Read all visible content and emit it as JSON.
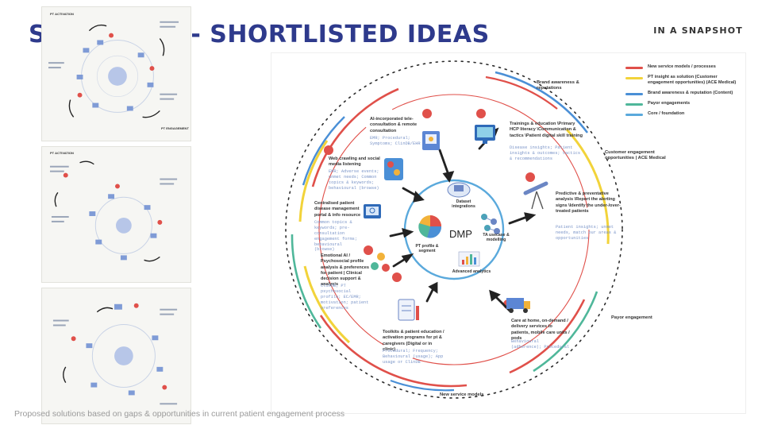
{
  "header": {
    "title": "SYNTHESIS - SHORTLISTED IDEAS",
    "tag": "IN A SNAPSHOT"
  },
  "footer": {
    "note": "Proposed solutions based on gaps & opportunities in current patient engagement process"
  },
  "thumbnails": [
    {
      "labels": [
        "PT ACTIVATION",
        "PT ENGAGEMENT"
      ]
    },
    {
      "labels": [
        "PT ACTIVATION"
      ]
    },
    {
      "labels": []
    }
  ],
  "legend": [
    {
      "label": "New service models / processes",
      "color": "#e0504a"
    },
    {
      "label": "PT insight as solution (Customer engagement opportunities) (ACE Medical)",
      "color": "#f2d33a"
    },
    {
      "label": "Brand awareness & reputation (Content)",
      "color": "#4a8fd6"
    },
    {
      "label": "Payor engagements",
      "color": "#4fb79a"
    },
    {
      "label": "Core / foundation",
      "color": "#5aa9dc"
    }
  ],
  "ring_labels": {
    "brand": "Brand awareness & reputations",
    "customer": "Customer engagement opportunities | ACE Medical",
    "payor": "Payor engagement",
    "service": "New service models"
  },
  "center": {
    "dmp": "DMP",
    "dataset": "Dataset integrations",
    "ta": "TA usecase & modelling",
    "pt_profile": "PT profile & segment",
    "analytics": "Advanced analytics"
  },
  "nodes": {
    "ai_tele": {
      "title": "AI-incorporated tele-consultation & remote consultation",
      "detail": "EMR; Procedural; Symptoms; ClinDB/EHR"
    },
    "trainings": {
      "title": "Trainings & education \\Primary HCP literacy \\Communication & tactics \\Patient digital skill training",
      "detail": "Disease insights; Patient insights & outcomes; tactics & recommendations"
    },
    "web_crawl": {
      "title": "Web crawling and social media listening",
      "detail": "EMR; Adverse events; unmet needs; Common topics & keywords; behavioural (browse)"
    },
    "predictive": {
      "title": "Predictive & preventative analysis \\Report the alerting signs \\Identify the under-/over-treated patients",
      "detail": "Patient insights; unmet needs, match our areas & opportunities"
    },
    "centralised": {
      "title": "Centralised patient disease management portal & info resource",
      "detail": "Common topics & keywords; pre-consultation engagement forms; behavioural (browse)"
    },
    "emotional": {
      "title": "Emotional AI / Psychosocial profile analysis & preferences for patient | Clinical decision support & analysis",
      "detail": "ClinDB; PT psychosocial profile; EC/EMR; motivation; patient preferences"
    },
    "toolkits": {
      "title": "Toolkits & patient education / activation programs for pt & caregivers (Digital or in clinic)",
      "detail": "Procedural; Frequency; Behavioural (usage); App usage or ClinDB"
    },
    "care_home": {
      "title": "Care at home, on-demand / delivery services to patients, mobile care units / pods",
      "detail": "Behavioural (adherence); Procedural"
    }
  }
}
